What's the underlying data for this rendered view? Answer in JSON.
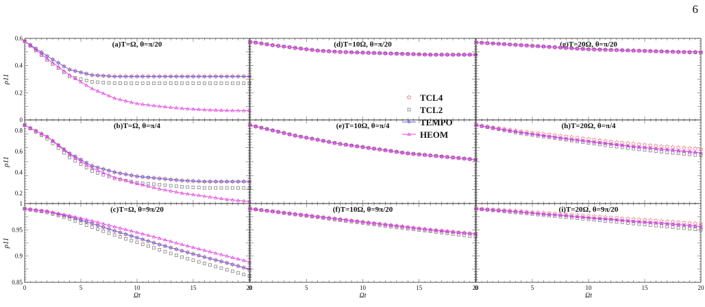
{
  "page_number": "6",
  "colors": {
    "TCL4": "#e98a94",
    "TCL2": "#6e6e6e",
    "TEMPO": "#5b5bd6",
    "HEOM": "#e33ee3"
  },
  "legend": [
    {
      "name": "TCL4",
      "marker": "hexagram"
    },
    {
      "name": "TCL2",
      "marker": "square"
    },
    {
      "name": "TEMPO",
      "marker": "line-circle"
    },
    {
      "name": "HEOM",
      "marker": "line-triangle"
    }
  ],
  "legend_placement": "panel (d), lower-right",
  "shared": {
    "xlabel": "Ωt",
    "ylabel": "ρ11",
    "xlim": [
      0,
      20
    ],
    "xticks": [
      "0",
      "5",
      "10",
      "15",
      "20"
    ]
  },
  "rows": [
    {
      "ylim": [
        0,
        0.6
      ],
      "yticks": [
        "0",
        "0.2",
        "0.4",
        "0.6"
      ]
    },
    {
      "ylim": [
        0.1,
        0.9
      ],
      "yticks": [
        "0.2",
        "0.4",
        "0.6",
        "0.8"
      ]
    },
    {
      "ylim": [
        0.85,
        1.0
      ],
      "yticks": [
        "0.85",
        "0.9",
        "0.95",
        "1"
      ]
    }
  ],
  "chart_data": [
    {
      "id": "a",
      "title": "(a)T=Ω, θ=π/20",
      "type": "line",
      "x": [
        0,
        2,
        4,
        6,
        8,
        10,
        12,
        14,
        16,
        18,
        20
      ],
      "series": [
        {
          "name": "TCL4",
          "values": [
            0.58,
            0.47,
            0.37,
            0.33,
            0.32,
            0.32,
            0.32,
            0.32,
            0.32,
            0.32,
            0.32
          ]
        },
        {
          "name": "TCL2",
          "values": [
            0.58,
            0.44,
            0.32,
            0.28,
            0.27,
            0.27,
            0.27,
            0.27,
            0.27,
            0.27,
            0.27
          ]
        },
        {
          "name": "TEMPO",
          "values": [
            0.58,
            0.47,
            0.37,
            0.33,
            0.32,
            0.32,
            0.32,
            0.32,
            0.32,
            0.32,
            0.32
          ]
        },
        {
          "name": "HEOM",
          "values": [
            0.58,
            0.45,
            0.33,
            0.23,
            0.16,
            0.12,
            0.1,
            0.085,
            0.075,
            0.07,
            0.068
          ]
        }
      ]
    },
    {
      "id": "b",
      "title": "(b)T=Ω, θ=π/4",
      "type": "line",
      "x": [
        0,
        2,
        4,
        6,
        8,
        10,
        12,
        14,
        16,
        18,
        20
      ],
      "series": [
        {
          "name": "TCL4",
          "values": [
            0.85,
            0.74,
            0.58,
            0.46,
            0.4,
            0.36,
            0.34,
            0.32,
            0.31,
            0.31,
            0.31
          ]
        },
        {
          "name": "TCL2",
          "values": [
            0.85,
            0.72,
            0.54,
            0.41,
            0.34,
            0.3,
            0.28,
            0.26,
            0.25,
            0.25,
            0.25
          ]
        },
        {
          "name": "TEMPO",
          "values": [
            0.85,
            0.74,
            0.58,
            0.46,
            0.4,
            0.36,
            0.34,
            0.32,
            0.31,
            0.31,
            0.31
          ]
        },
        {
          "name": "HEOM",
          "values": [
            0.85,
            0.74,
            0.57,
            0.44,
            0.35,
            0.29,
            0.24,
            0.2,
            0.17,
            0.14,
            0.12
          ]
        }
      ]
    },
    {
      "id": "c",
      "title": "(c)T=Ω, θ=9π/20",
      "type": "line",
      "x": [
        0,
        2,
        4,
        6,
        8,
        10,
        12,
        14,
        16,
        18,
        20
      ],
      "series": [
        {
          "name": "TCL4",
          "values": [
            0.99,
            0.985,
            0.975,
            0.962,
            0.948,
            0.935,
            0.922,
            0.91,
            0.898,
            0.887,
            0.875
          ]
        },
        {
          "name": "TCL2",
          "values": [
            0.99,
            0.983,
            0.971,
            0.955,
            0.94,
            0.926,
            0.912,
            0.898,
            0.886,
            0.874,
            0.862
          ]
        },
        {
          "name": "TEMPO",
          "values": [
            0.99,
            0.985,
            0.975,
            0.962,
            0.948,
            0.935,
            0.922,
            0.91,
            0.898,
            0.887,
            0.875
          ]
        },
        {
          "name": "HEOM",
          "values": [
            0.99,
            0.985,
            0.977,
            0.967,
            0.956,
            0.945,
            0.934,
            0.922,
            0.911,
            0.9,
            0.889
          ]
        }
      ]
    },
    {
      "id": "d",
      "title": "(d)T=10Ω, θ=π/20",
      "type": "line",
      "x": [
        0,
        2,
        4,
        6,
        8,
        10,
        12,
        14,
        16,
        18,
        20
      ],
      "series": [
        {
          "name": "TCL4",
          "values": [
            0.575,
            0.55,
            0.53,
            0.51,
            0.5,
            0.495,
            0.49,
            0.485,
            0.48,
            0.48,
            0.48
          ]
        },
        {
          "name": "TCL2",
          "values": [
            0.575,
            0.55,
            0.53,
            0.51,
            0.5,
            0.495,
            0.49,
            0.485,
            0.48,
            0.48,
            0.48
          ]
        },
        {
          "name": "TEMPO",
          "values": [
            0.575,
            0.55,
            0.53,
            0.51,
            0.5,
            0.495,
            0.49,
            0.485,
            0.48,
            0.48,
            0.48
          ]
        },
        {
          "name": "HEOM",
          "values": [
            0.575,
            0.55,
            0.53,
            0.51,
            0.5,
            0.495,
            0.49,
            0.485,
            0.48,
            0.48,
            0.48
          ]
        }
      ]
    },
    {
      "id": "e",
      "title": "(e)T=10Ω, θ=π/4",
      "type": "line",
      "x": [
        0,
        2,
        4,
        6,
        8,
        10,
        12,
        14,
        16,
        18,
        20
      ],
      "series": [
        {
          "name": "TCL4",
          "values": [
            0.85,
            0.8,
            0.75,
            0.71,
            0.67,
            0.64,
            0.61,
            0.58,
            0.56,
            0.54,
            0.52
          ]
        },
        {
          "name": "TCL2",
          "values": [
            0.85,
            0.8,
            0.75,
            0.71,
            0.67,
            0.64,
            0.61,
            0.58,
            0.56,
            0.54,
            0.52
          ]
        },
        {
          "name": "TEMPO",
          "values": [
            0.85,
            0.8,
            0.75,
            0.71,
            0.67,
            0.64,
            0.61,
            0.58,
            0.56,
            0.54,
            0.52
          ]
        },
        {
          "name": "HEOM",
          "values": [
            0.85,
            0.8,
            0.75,
            0.71,
            0.67,
            0.64,
            0.61,
            0.58,
            0.56,
            0.54,
            0.52
          ]
        }
      ]
    },
    {
      "id": "f",
      "title": "(f)T=10Ω, θ=9π/20",
      "type": "line",
      "x": [
        0,
        2,
        4,
        6,
        8,
        10,
        12,
        14,
        16,
        18,
        20
      ],
      "series": [
        {
          "name": "TCL4",
          "values": [
            0.99,
            0.985,
            0.98,
            0.975,
            0.97,
            0.965,
            0.96,
            0.955,
            0.95,
            0.946,
            0.942
          ]
        },
        {
          "name": "TCL2",
          "values": [
            0.99,
            0.985,
            0.979,
            0.974,
            0.968,
            0.963,
            0.957,
            0.952,
            0.947,
            0.942,
            0.937
          ]
        },
        {
          "name": "TEMPO",
          "values": [
            0.99,
            0.985,
            0.98,
            0.975,
            0.97,
            0.965,
            0.96,
            0.955,
            0.95,
            0.946,
            0.942
          ]
        },
        {
          "name": "HEOM",
          "values": [
            0.99,
            0.985,
            0.98,
            0.975,
            0.97,
            0.965,
            0.96,
            0.955,
            0.95,
            0.946,
            0.942
          ]
        }
      ]
    },
    {
      "id": "g",
      "title": "(g)T=20Ω, θ=π/20",
      "type": "line",
      "x": [
        0,
        2,
        4,
        6,
        8,
        10,
        12,
        14,
        16,
        18,
        20
      ],
      "series": [
        {
          "name": "TCL4",
          "values": [
            0.57,
            0.56,
            0.55,
            0.54,
            0.53,
            0.52,
            0.515,
            0.51,
            0.505,
            0.5,
            0.5
          ]
        },
        {
          "name": "TCL2",
          "values": [
            0.57,
            0.56,
            0.55,
            0.54,
            0.53,
            0.52,
            0.515,
            0.51,
            0.505,
            0.5,
            0.495
          ]
        },
        {
          "name": "TEMPO",
          "values": [
            0.57,
            0.56,
            0.55,
            0.54,
            0.53,
            0.52,
            0.515,
            0.51,
            0.505,
            0.5,
            0.5
          ]
        },
        {
          "name": "HEOM",
          "values": [
            0.57,
            0.56,
            0.55,
            0.54,
            0.53,
            0.52,
            0.515,
            0.51,
            0.505,
            0.5,
            0.5
          ]
        }
      ]
    },
    {
      "id": "h",
      "title": "(h)T=20Ω, θ=π/4",
      "type": "line",
      "x": [
        0,
        2,
        4,
        6,
        8,
        10,
        12,
        14,
        16,
        18,
        20
      ],
      "series": [
        {
          "name": "TCL4",
          "values": [
            0.85,
            0.82,
            0.79,
            0.765,
            0.74,
            0.715,
            0.69,
            0.67,
            0.65,
            0.635,
            0.62
          ]
        },
        {
          "name": "TCL2",
          "values": [
            0.85,
            0.81,
            0.77,
            0.74,
            0.71,
            0.68,
            0.65,
            0.625,
            0.6,
            0.58,
            0.56
          ]
        },
        {
          "name": "TEMPO",
          "values": [
            0.85,
            0.815,
            0.78,
            0.75,
            0.72,
            0.695,
            0.67,
            0.645,
            0.625,
            0.605,
            0.585
          ]
        },
        {
          "name": "HEOM",
          "values": [
            0.85,
            0.815,
            0.78,
            0.75,
            0.72,
            0.695,
            0.67,
            0.645,
            0.625,
            0.605,
            0.585
          ]
        }
      ]
    },
    {
      "id": "i",
      "title": "(i)T=20Ω, θ=9π/20",
      "type": "line",
      "x": [
        0,
        2,
        4,
        6,
        8,
        10,
        12,
        14,
        16,
        18,
        20
      ],
      "series": [
        {
          "name": "TCL4",
          "values": [
            0.99,
            0.988,
            0.985,
            0.982,
            0.979,
            0.976,
            0.973,
            0.97,
            0.967,
            0.964,
            0.961
          ]
        },
        {
          "name": "TCL2",
          "values": [
            0.99,
            0.986,
            0.982,
            0.978,
            0.974,
            0.97,
            0.966,
            0.962,
            0.958,
            0.954,
            0.95
          ]
        },
        {
          "name": "TEMPO",
          "values": [
            0.99,
            0.987,
            0.984,
            0.98,
            0.977,
            0.973,
            0.97,
            0.966,
            0.963,
            0.96,
            0.956
          ]
        },
        {
          "name": "HEOM",
          "values": [
            0.99,
            0.987,
            0.984,
            0.98,
            0.977,
            0.973,
            0.97,
            0.966,
            0.963,
            0.96,
            0.956
          ]
        }
      ]
    }
  ]
}
